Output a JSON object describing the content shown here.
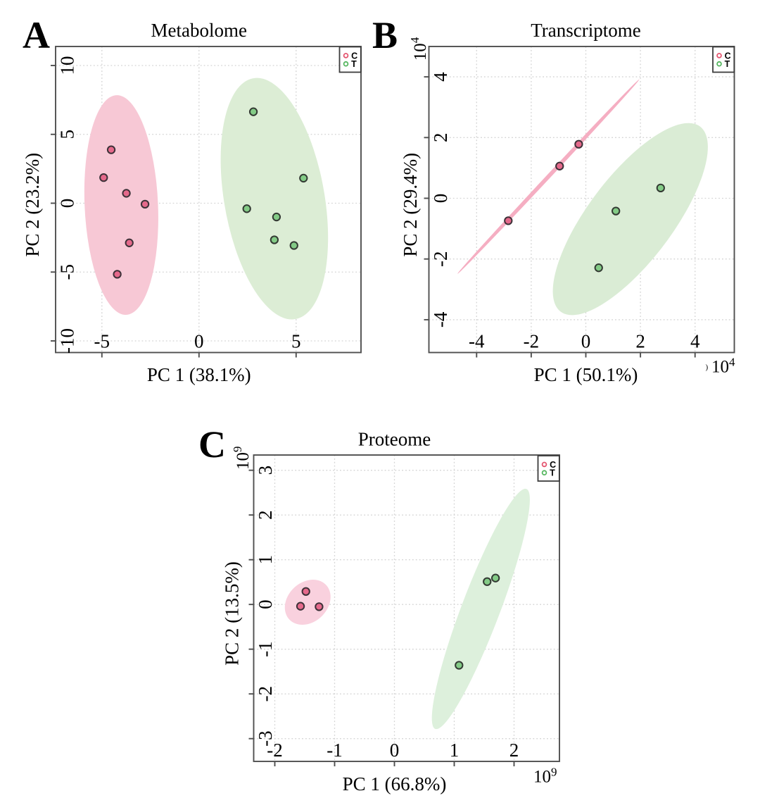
{
  "styles": {
    "background": "#ffffff",
    "box_color": "#4f4f4f",
    "grid_color": "#d4d4d4",
    "tick_color": "#4f4f4f",
    "text_color": "#000000",
    "legend_border_color": "#3c3c3c",
    "legend_text_color": "#3f3f4a",
    "legend_marker_colors": {
      "C": "#e4556f",
      "T": "#54b65e"
    }
  },
  "chart_data": [
    {
      "type": "scatter",
      "panel_label": "A",
      "title": "Metabolome",
      "xlabel": "PC 1 (38.1%)",
      "ylabel": "PC 2 (23.2%)",
      "xlim": [
        -7.384,
        8.341
      ],
      "ylim": [
        -10.844,
        11.381
      ],
      "xticks": [
        -5,
        0,
        5
      ],
      "yticks": [
        -10,
        -5,
        0,
        5,
        10
      ],
      "x_exponent": null,
      "y_exponent": null,
      "grid": "dotted",
      "legend": {
        "position": "top-right",
        "entries": [
          "C",
          "T"
        ]
      },
      "series": [
        {
          "name": "C",
          "marker_fill": "#e5698b",
          "marker_stroke": "#3d3138",
          "points": [
            [
              -4.52,
              3.88
            ],
            [
              -4.91,
              1.86
            ],
            [
              -3.74,
              0.72
            ],
            [
              -2.78,
              -0.07
            ],
            [
              -3.59,
              -2.88
            ],
            [
              -4.21,
              -5.16
            ]
          ],
          "ellipse": {
            "cx": -4.0,
            "cy": -0.13,
            "a": 7.98,
            "b": 1.89,
            "angle_deg": 91.7,
            "fill": "#f7c8d5"
          }
        },
        {
          "name": "T",
          "marker_fill": "#83cb86",
          "marker_stroke": "#333a33",
          "points": [
            [
              2.8,
              6.64
            ],
            [
              5.38,
              1.82
            ],
            [
              2.46,
              -0.4
            ],
            [
              3.99,
              -1.0
            ],
            [
              3.88,
              -2.66
            ],
            [
              4.89,
              -3.07
            ]
          ],
          "ellipse": {
            "cx": 3.88,
            "cy": 0.33,
            "a": 8.82,
            "b": 2.6,
            "angle_deg": 96.4,
            "fill": "#dcedd5"
          }
        }
      ]
    },
    {
      "type": "scatter",
      "panel_label": "B",
      "title": "Transcriptome",
      "xlabel": "PC 1 (50.1%)",
      "ylabel": "PC 2 (29.4%)",
      "xlim": [
        -5.747,
        5.438
      ],
      "ylim": [
        -5.081,
        5.0
      ],
      "xticks": [
        -4,
        -2,
        0,
        2,
        4
      ],
      "yticks": [
        -4,
        -2,
        0,
        2,
        4
      ],
      "x_exponent": {
        "base": "10",
        "sup": "4",
        "prefix": ")"
      },
      "y_exponent": {
        "base": "10",
        "sup": "4"
      },
      "grid": "dotted",
      "legend": {
        "position": "top-right",
        "entries": [
          "C",
          "T"
        ]
      },
      "series": [
        {
          "name": "C",
          "marker_fill": "#e5698b",
          "marker_stroke": "#3d3138",
          "points": [
            [
              -0.26,
              1.78
            ],
            [
              -0.96,
              1.06
            ],
            [
              -2.84,
              -0.74
            ]
          ],
          "ellipse": {
            "cx": -1.37,
            "cy": 0.715,
            "a": 4.62,
            "b": 0.07,
            "angle_deg": 43.9,
            "fill": "#f5aec2"
          }
        },
        {
          "name": "T",
          "marker_fill": "#83cb86",
          "marker_stroke": "#333a33",
          "points": [
            [
              2.74,
              0.34
            ],
            [
              1.1,
              -0.42
            ],
            [
              0.47,
              -2.29
            ]
          ],
          "ellipse": {
            "cx": 1.63,
            "cy": -0.685,
            "a": 3.98,
            "b": 1.49,
            "angle_deg": 49.1,
            "fill": "#daecd5"
          }
        }
      ]
    },
    {
      "type": "scatter",
      "panel_label": "C",
      "title": "Proteome",
      "xlabel": "PC 1 (66.8%)",
      "ylabel": "PC 2 (13.5%)",
      "xlim": [
        -2.353,
        2.759
      ],
      "ylim": [
        -3.509,
        3.341
      ],
      "xticks": [
        -2,
        -1,
        0,
        1,
        2
      ],
      "yticks": [
        -3,
        -2,
        -1,
        0,
        1,
        2,
        3
      ],
      "x_exponent": {
        "base": "10",
        "sup": "9",
        "prefix": ""
      },
      "y_exponent": {
        "base": "10",
        "sup": "9"
      },
      "grid": "dotted",
      "legend": {
        "position": "top-right",
        "entries": [
          "C",
          "T"
        ]
      },
      "series": [
        {
          "name": "C",
          "marker_fill": "#e5698b",
          "marker_stroke": "#3d3138",
          "points": [
            [
              -1.48,
              0.29
            ],
            [
              -1.57,
              -0.04
            ],
            [
              -1.26,
              -0.05
            ]
          ],
          "ellipse": {
            "cx": -1.45,
            "cy": 0.05,
            "a": 0.52,
            "b": 0.36,
            "angle_deg": 70,
            "fill": "#f9d1de"
          }
        },
        {
          "name": "T",
          "marker_fill": "#83cb86",
          "marker_stroke": "#333a33",
          "points": [
            [
              1.55,
              0.51
            ],
            [
              1.69,
              0.59
            ],
            [
              1.08,
              -1.36
            ]
          ],
          "ellipse": {
            "cx": 1.445,
            "cy": -0.1,
            "a": 2.79,
            "b": 0.33,
            "angle_deg": 74.3,
            "fill": "#ddf0dc"
          }
        }
      ]
    }
  ]
}
